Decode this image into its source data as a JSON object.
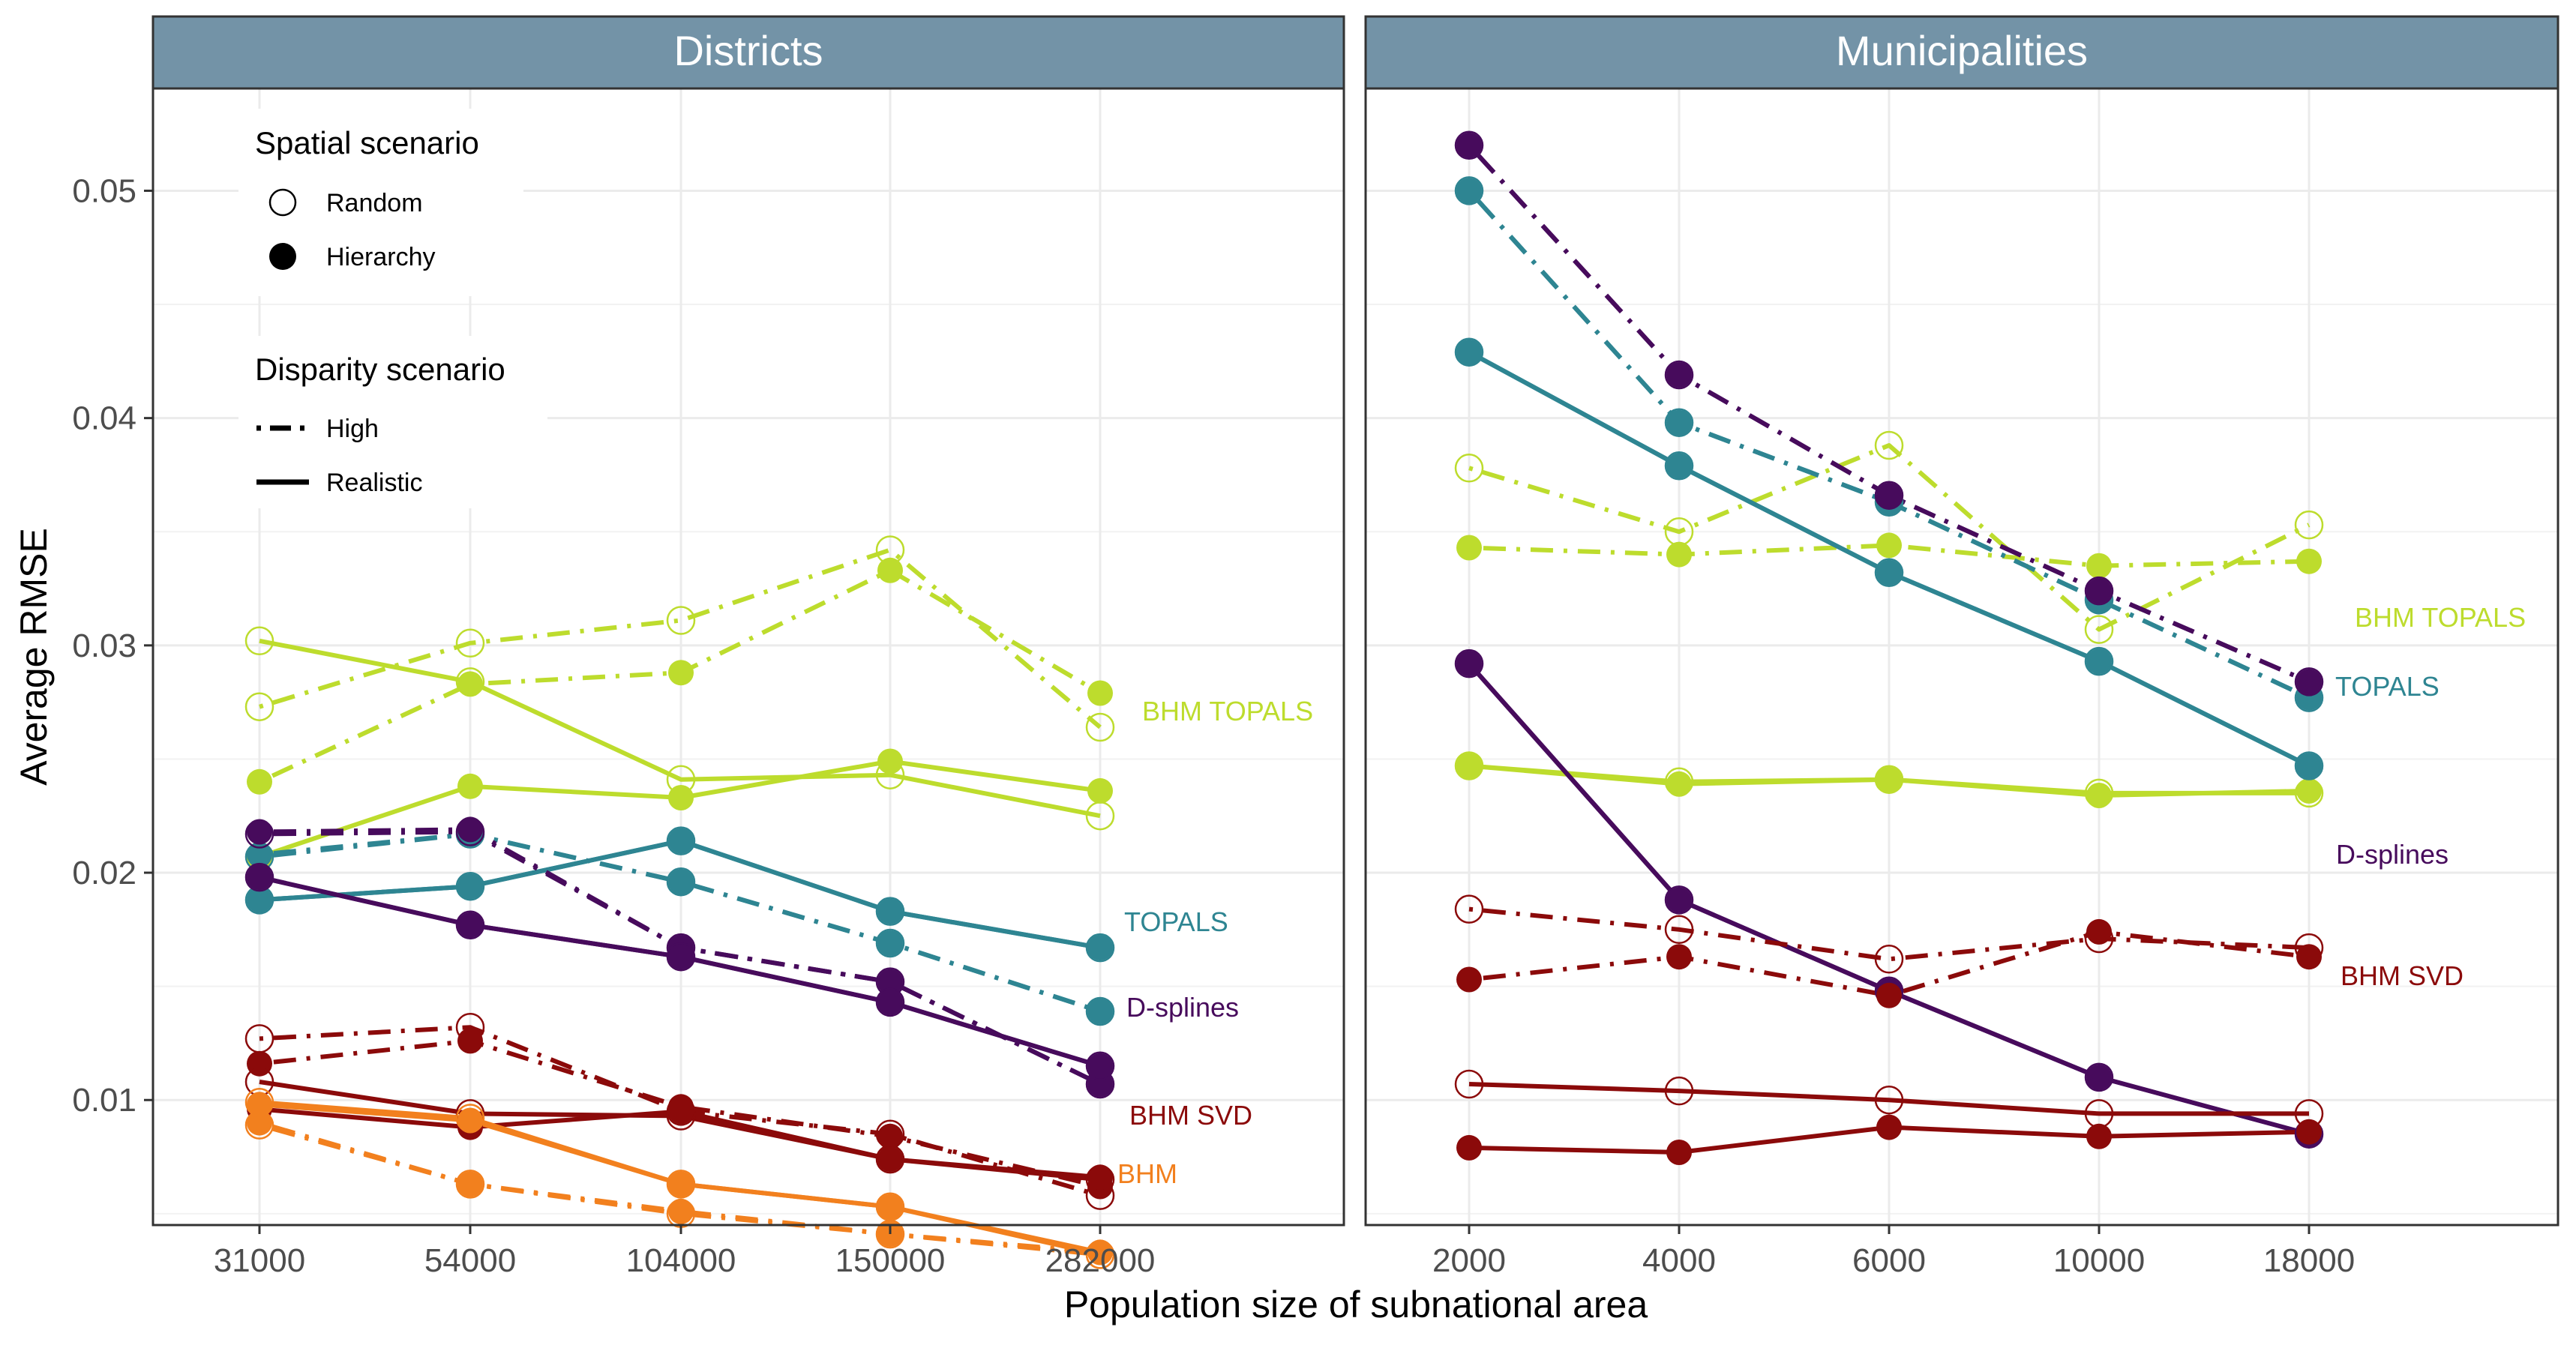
{
  "colors": {
    "BHM TOPALS": "#bddc2d",
    "TOPALS": "#2e8592",
    "D-splines": "#470b5c",
    "BHM SVD": "#8b0a0a",
    "BHM": "#f2801e",
    "strip": "#7393a7"
  },
  "legend": {
    "spatial_title": "Spatial scenario",
    "spatial_items": [
      "Random",
      "Hierarchy"
    ],
    "disparity_title": "Disparity scenario",
    "disparity_items": [
      "High",
      "Realistic"
    ]
  },
  "chart_data": [
    {
      "type": "line",
      "panel": "Districts",
      "xlabel": "Population size of subnational area",
      "ylabel": "Average RMSE",
      "categories": [
        "31000",
        "54000",
        "104000",
        "150000",
        "282000"
      ],
      "ylim": [
        0.0045,
        0.0545
      ],
      "yticks": [
        0.01,
        0.02,
        0.03,
        0.04,
        0.05
      ],
      "ytick_labels": [
        "0.01",
        "0.02",
        "0.03",
        "0.04",
        "0.05"
      ],
      "grid": true,
      "series_labels": [
        "BHM TOPALS",
        "TOPALS",
        "D-splines",
        "BHM SVD",
        "BHM"
      ],
      "series": [
        {
          "model": "BHM TOPALS",
          "spatial": "Random",
          "disparity": "High",
          "values": [
            0.0273,
            0.0301,
            0.0311,
            0.0342,
            0.0264
          ]
        },
        {
          "model": "BHM TOPALS",
          "spatial": "Hierarchy",
          "disparity": "High",
          "values": [
            0.024,
            0.0283,
            0.0288,
            0.0333,
            0.0279
          ]
        },
        {
          "model": "BHM TOPALS",
          "spatial": "Random",
          "disparity": "Realistic",
          "values": [
            0.0302,
            0.0284,
            0.0241,
            0.0243,
            0.0225
          ]
        },
        {
          "model": "BHM TOPALS",
          "spatial": "Hierarchy",
          "disparity": "Realistic",
          "values": [
            0.0207,
            0.0238,
            0.0233,
            0.0249,
            0.0236
          ]
        },
        {
          "model": "TOPALS",
          "spatial": "Random",
          "disparity": "High",
          "values": [
            0.0207,
            0.0217,
            0.0196,
            0.0169,
            0.0139
          ]
        },
        {
          "model": "TOPALS",
          "spatial": "Hierarchy",
          "disparity": "High",
          "values": [
            0.0208,
            0.0217,
            0.0196,
            0.0169,
            0.0139
          ]
        },
        {
          "model": "TOPALS",
          "spatial": "Random",
          "disparity": "Realistic",
          "values": [
            0.0188,
            0.0194,
            0.0214,
            0.0183,
            0.0167
          ]
        },
        {
          "model": "TOPALS",
          "spatial": "Hierarchy",
          "disparity": "Realistic",
          "values": [
            0.0188,
            0.0194,
            0.0214,
            0.0183,
            0.0167
          ]
        },
        {
          "model": "D-splines",
          "spatial": "Random",
          "disparity": "High",
          "values": [
            0.0217,
            0.0218,
            0.0167,
            0.0152,
            0.0107
          ]
        },
        {
          "model": "D-splines",
          "spatial": "Hierarchy",
          "disparity": "High",
          "values": [
            0.0218,
            0.0219,
            0.0167,
            0.0152,
            0.0107
          ]
        },
        {
          "model": "D-splines",
          "spatial": "Random",
          "disparity": "Realistic",
          "values": [
            0.0198,
            0.0177,
            0.0163,
            0.0143,
            0.0115
          ]
        },
        {
          "model": "D-splines",
          "spatial": "Hierarchy",
          "disparity": "Realistic",
          "values": [
            0.0198,
            0.0177,
            0.0163,
            0.0143,
            0.0115
          ]
        },
        {
          "model": "BHM SVD",
          "spatial": "Random",
          "disparity": "High",
          "values": [
            0.0127,
            0.0132,
            0.0095,
            0.0085,
            0.0058
          ]
        },
        {
          "model": "BHM SVD",
          "spatial": "Hierarchy",
          "disparity": "High",
          "values": [
            0.0116,
            0.0126,
            0.0097,
            0.0084,
            0.0062
          ]
        },
        {
          "model": "BHM SVD",
          "spatial": "Random",
          "disparity": "Realistic",
          "values": [
            0.0108,
            0.0094,
            0.0093,
            0.0074,
            0.0065
          ]
        },
        {
          "model": "BHM SVD",
          "spatial": "Hierarchy",
          "disparity": "Realistic",
          "values": [
            0.0096,
            0.0088,
            0.0095,
            0.0074,
            0.0066
          ]
        },
        {
          "model": "BHM",
          "spatial": "Random",
          "disparity": "High",
          "values": [
            0.0089,
            0.0063,
            0.005,
            0.0041,
            0.0032
          ]
        },
        {
          "model": "BHM",
          "spatial": "Hierarchy",
          "disparity": "High",
          "values": [
            0.009,
            0.0063,
            0.0051,
            0.0041,
            0.0033
          ]
        },
        {
          "model": "BHM",
          "spatial": "Random",
          "disparity": "Realistic",
          "values": [
            0.0099,
            0.0092,
            0.0063,
            0.0053,
            0.0032
          ]
        },
        {
          "model": "BHM",
          "spatial": "Hierarchy",
          "disparity": "Realistic",
          "values": [
            0.0098,
            0.0091,
            0.0063,
            0.0053,
            0.0033
          ]
        }
      ]
    },
    {
      "type": "line",
      "panel": "Municipalities",
      "xlabel": "Population size of subnational area",
      "ylabel": "Average RMSE",
      "categories": [
        "2000",
        "4000",
        "6000",
        "10000",
        "18000"
      ],
      "ylim": [
        0.0045,
        0.0545
      ],
      "yticks": [
        0.01,
        0.02,
        0.03,
        0.04,
        0.05
      ],
      "grid": true,
      "series_labels": [
        "BHM TOPALS",
        "TOPALS",
        "D-splines",
        "BHM SVD"
      ],
      "series": [
        {
          "model": "BHM TOPALS",
          "spatial": "Random",
          "disparity": "High",
          "values": [
            0.0378,
            0.035,
            0.0388,
            0.0307,
            0.0353
          ]
        },
        {
          "model": "BHM TOPALS",
          "spatial": "Hierarchy",
          "disparity": "High",
          "values": [
            0.0343,
            0.034,
            0.0344,
            0.0335,
            0.0337
          ]
        },
        {
          "model": "BHM TOPALS",
          "spatial": "Random",
          "disparity": "Realistic",
          "values": [
            0.0247,
            0.024,
            0.0241,
            0.0235,
            0.0235
          ]
        },
        {
          "model": "BHM TOPALS",
          "spatial": "Hierarchy",
          "disparity": "Realistic",
          "values": [
            0.0247,
            0.0239,
            0.0241,
            0.0234,
            0.0236
          ]
        },
        {
          "model": "TOPALS",
          "spatial": "Random",
          "disparity": "High",
          "values": [
            0.05,
            0.0398,
            0.0363,
            0.032,
            0.0277
          ]
        },
        {
          "model": "TOPALS",
          "spatial": "Hierarchy",
          "disparity": "High",
          "values": [
            0.05,
            0.0398,
            0.0363,
            0.032,
            0.0277
          ]
        },
        {
          "model": "TOPALS",
          "spatial": "Random",
          "disparity": "Realistic",
          "values": [
            0.0429,
            0.0379,
            0.0332,
            0.0293,
            0.0247
          ]
        },
        {
          "model": "TOPALS",
          "spatial": "Hierarchy",
          "disparity": "Realistic",
          "values": [
            0.0429,
            0.0379,
            0.0332,
            0.0293,
            0.0247
          ]
        },
        {
          "model": "D-splines",
          "spatial": "Random",
          "disparity": "High",
          "values": [
            0.052,
            0.0419,
            0.0366,
            0.0324,
            0.0284
          ]
        },
        {
          "model": "D-splines",
          "spatial": "Hierarchy",
          "disparity": "High",
          "values": [
            0.052,
            0.0419,
            0.0366,
            0.0324,
            0.0284
          ]
        },
        {
          "model": "D-splines",
          "spatial": "Random",
          "disparity": "Realistic",
          "values": [
            0.0292,
            0.0188,
            0.0148,
            0.011,
            0.0085
          ]
        },
        {
          "model": "D-splines",
          "spatial": "Hierarchy",
          "disparity": "Realistic",
          "values": [
            0.0292,
            0.0188,
            0.0148,
            0.011,
            0.0085
          ]
        },
        {
          "model": "BHM SVD",
          "spatial": "Random",
          "disparity": "High",
          "values": [
            0.0184,
            0.0175,
            0.0162,
            0.0171,
            0.0167
          ]
        },
        {
          "model": "BHM SVD",
          "spatial": "Hierarchy",
          "disparity": "High",
          "values": [
            0.0153,
            0.0163,
            0.0146,
            0.0174,
            0.0163
          ]
        },
        {
          "model": "BHM SVD",
          "spatial": "Random",
          "disparity": "Realistic",
          "values": [
            0.0107,
            0.0104,
            0.01,
            0.0094,
            0.0094
          ]
        },
        {
          "model": "BHM SVD",
          "spatial": "Hierarchy",
          "disparity": "Realistic",
          "values": [
            0.0079,
            0.0077,
            0.0088,
            0.0084,
            0.0086
          ]
        }
      ]
    }
  ]
}
